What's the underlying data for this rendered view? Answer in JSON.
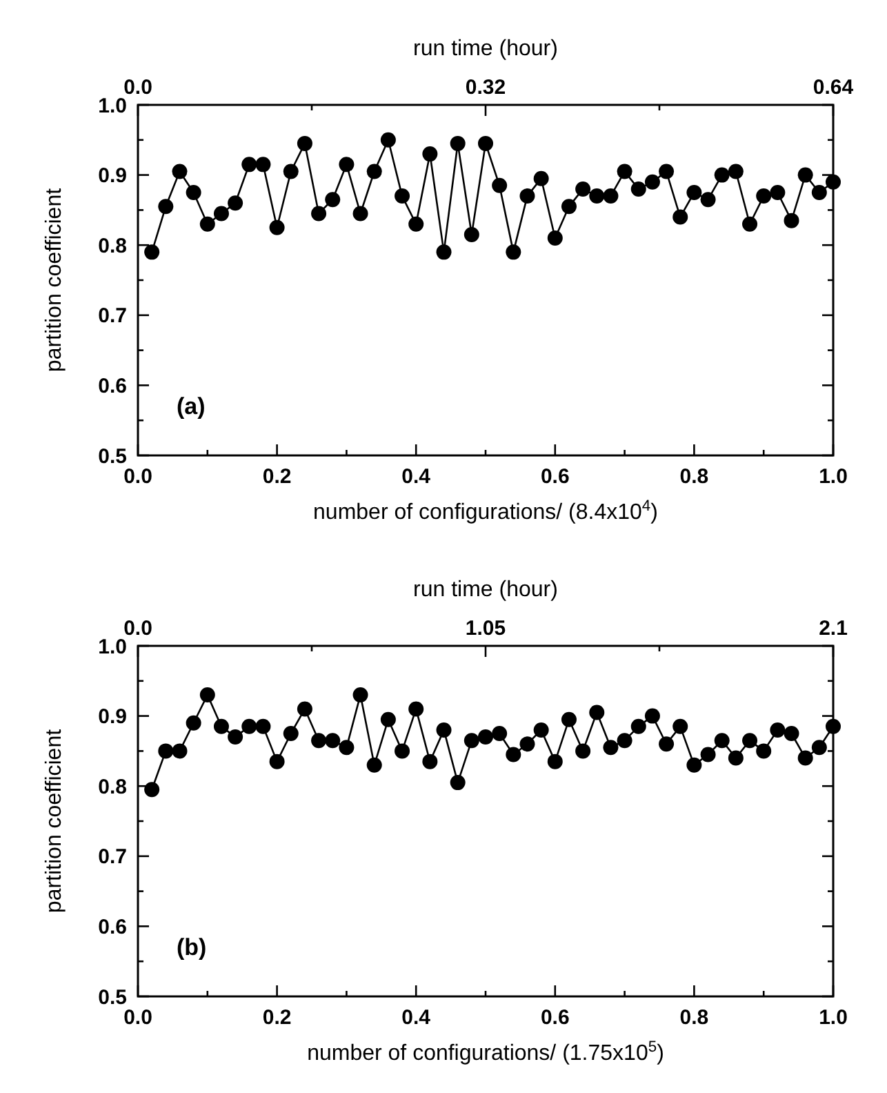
{
  "chart_data": [
    {
      "type": "line",
      "xlabel": "number of configurations/ (8.4x10$^{4}$)",
      "ylabel": "partition coefficient",
      "x2label": "run time (hour)",
      "annotations": [
        "(a)"
      ],
      "marker": "circle",
      "line_style": "solid",
      "grid": false,
      "xlim": [
        0,
        1
      ],
      "xticks": [
        {
          "value": 0,
          "label": "0.0"
        },
        {
          "value": 0.1,
          "label": null
        },
        0.2,
        {
          "value": 0.3,
          "label": null
        },
        0.4,
        {
          "value": 0.5,
          "label": null
        },
        0.6,
        {
          "value": 0.7,
          "label": null
        },
        0.8,
        {
          "value": 0.9,
          "label": null
        },
        {
          "value": 1,
          "label": "1.0"
        }
      ],
      "x2lim": [
        0,
        0.64
      ],
      "x2ticks": [
        {
          "value": 0,
          "label": "0.0"
        },
        {
          "value": 0.16,
          "label": null
        },
        0.32,
        {
          "value": 0.48,
          "label": null
        },
        0.64
      ],
      "ylim": [
        0.5,
        1.0
      ],
      "yticks": [
        0.5,
        {
          "value": 0.55,
          "label": null
        },
        0.6,
        {
          "value": 0.65,
          "label": null
        },
        0.7,
        {
          "value": 0.75,
          "label": null
        },
        0.8,
        {
          "value": 0.85,
          "label": null
        },
        0.9,
        {
          "value": 0.95,
          "label": null
        },
        {
          "value": 1,
          "label": "1.0"
        }
      ],
      "x": [
        0.02,
        0.04,
        0.06,
        0.08,
        0.1,
        0.12,
        0.14,
        0.16,
        0.18,
        0.2,
        0.22,
        0.24,
        0.26,
        0.28,
        0.3,
        0.32,
        0.34,
        0.36,
        0.38,
        0.4,
        0.42,
        0.44,
        0.46,
        0.48,
        0.5,
        0.52,
        0.54,
        0.56,
        0.58,
        0.6,
        0.62,
        0.64,
        0.66,
        0.68,
        0.7,
        0.72,
        0.74,
        0.76,
        0.78,
        0.8,
        0.82,
        0.84,
        0.86,
        0.88,
        0.9,
        0.92,
        0.94,
        0.96,
        0.98,
        1.0
      ],
      "series": [
        {
          "color": "#000000",
          "values": [
            0.79,
            0.855,
            0.905,
            0.875,
            0.83,
            0.845,
            0.86,
            0.915,
            0.915,
            0.825,
            0.905,
            0.945,
            0.845,
            0.865,
            0.915,
            0.845,
            0.905,
            0.95,
            0.87,
            0.83,
            0.93,
            0.79,
            0.945,
            0.815,
            0.945,
            0.885,
            0.79,
            0.87,
            0.895,
            0.81,
            0.855,
            0.88,
            0.87,
            0.87,
            0.905,
            0.88,
            0.89,
            0.905,
            0.84,
            0.875,
            0.865,
            0.9,
            0.905,
            0.83,
            0.87,
            0.875,
            0.835,
            0.9,
            0.875,
            0.89
          ]
        }
      ]
    },
    {
      "type": "line",
      "xlabel": "number of configurations/ (1.75x10$^{5}$)",
      "ylabel": "partition coefficient",
      "x2label": "run time (hour)",
      "annotations": [
        "(b)"
      ],
      "marker": "circle",
      "line_style": "solid",
      "grid": false,
      "xlim": [
        0,
        1
      ],
      "xticks": [
        {
          "value": 0,
          "label": "0.0"
        },
        {
          "value": 0.1,
          "label": null
        },
        0.2,
        {
          "value": 0.3,
          "label": null
        },
        0.4,
        {
          "value": 0.5,
          "label": null
        },
        0.6,
        {
          "value": 0.7,
          "label": null
        },
        0.8,
        {
          "value": 0.9,
          "label": null
        },
        {
          "value": 1,
          "label": "1.0"
        }
      ],
      "x2lim": [
        0,
        2.1
      ],
      "x2ticks": [
        {
          "value": 0,
          "label": "0.0"
        },
        {
          "value": 0.525,
          "label": null
        },
        1.05,
        {
          "value": 1.575,
          "label": null
        },
        2.1
      ],
      "ylim": [
        0.5,
        1.0
      ],
      "yticks": [
        0.5,
        {
          "value": 0.55,
          "label": null
        },
        0.6,
        {
          "value": 0.65,
          "label": null
        },
        0.7,
        {
          "value": 0.75,
          "label": null
        },
        0.8,
        {
          "value": 0.85,
          "label": null
        },
        0.9,
        {
          "value": 0.95,
          "label": null
        },
        {
          "value": 1,
          "label": "1.0"
        }
      ],
      "x": [
        0.02,
        0.04,
        0.06,
        0.08,
        0.1,
        0.12,
        0.14,
        0.16,
        0.18,
        0.2,
        0.22,
        0.24,
        0.26,
        0.28,
        0.3,
        0.32,
        0.34,
        0.36,
        0.38,
        0.4,
        0.42,
        0.44,
        0.46,
        0.48,
        0.5,
        0.52,
        0.54,
        0.56,
        0.58,
        0.6,
        0.62,
        0.64,
        0.66,
        0.68,
        0.7,
        0.72,
        0.74,
        0.76,
        0.78,
        0.8,
        0.82,
        0.84,
        0.86,
        0.88,
        0.9,
        0.92,
        0.94,
        0.96,
        0.98,
        1.0
      ],
      "series": [
        {
          "color": "#000000",
          "values": [
            0.795,
            0.85,
            0.85,
            0.89,
            0.93,
            0.885,
            0.87,
            0.885,
            0.885,
            0.835,
            0.875,
            0.91,
            0.865,
            0.865,
            0.855,
            0.93,
            0.83,
            0.895,
            0.85,
            0.91,
            0.835,
            0.88,
            0.805,
            0.865,
            0.87,
            0.875,
            0.845,
            0.86,
            0.88,
            0.835,
            0.895,
            0.85,
            0.905,
            0.855,
            0.865,
            0.885,
            0.9,
            0.86,
            0.885,
            0.83,
            0.845,
            0.865,
            0.84,
            0.865,
            0.85,
            0.88,
            0.875,
            0.84,
            0.855,
            0.885
          ]
        }
      ]
    }
  ]
}
